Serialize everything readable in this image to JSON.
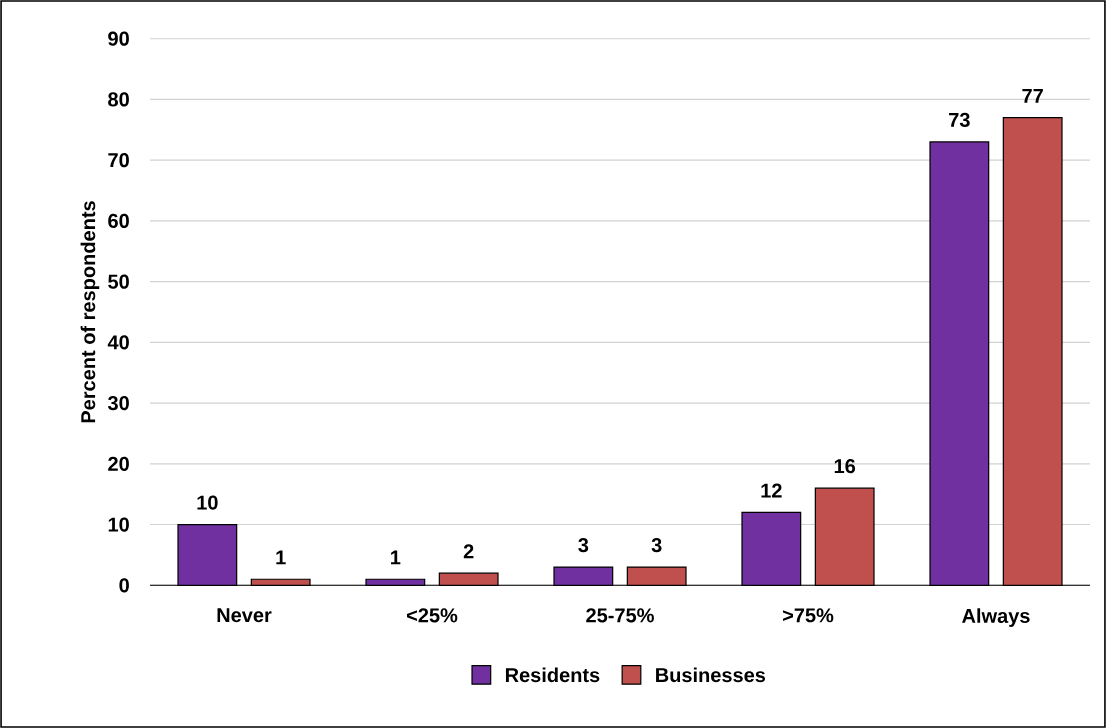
{
  "chart_data": {
    "type": "bar",
    "ylabel": "Percent of respondents",
    "categories": [
      "Never",
      "<25%",
      "25-75%",
      ">75%",
      "Always"
    ],
    "series": [
      {
        "name": "Residents",
        "color": "#7030a0",
        "values": [
          10,
          1,
          3,
          12,
          73
        ]
      },
      {
        "name": "Businesses",
        "color": "#c0504d",
        "values": [
          1,
          2,
          3,
          16,
          77
        ]
      }
    ],
    "ylim": [
      0,
      90
    ],
    "yticks": [
      0,
      10,
      20,
      30,
      40,
      50,
      60,
      70,
      80,
      90
    ],
    "grid": "y",
    "legend": "bottom",
    "data_labels": true
  }
}
